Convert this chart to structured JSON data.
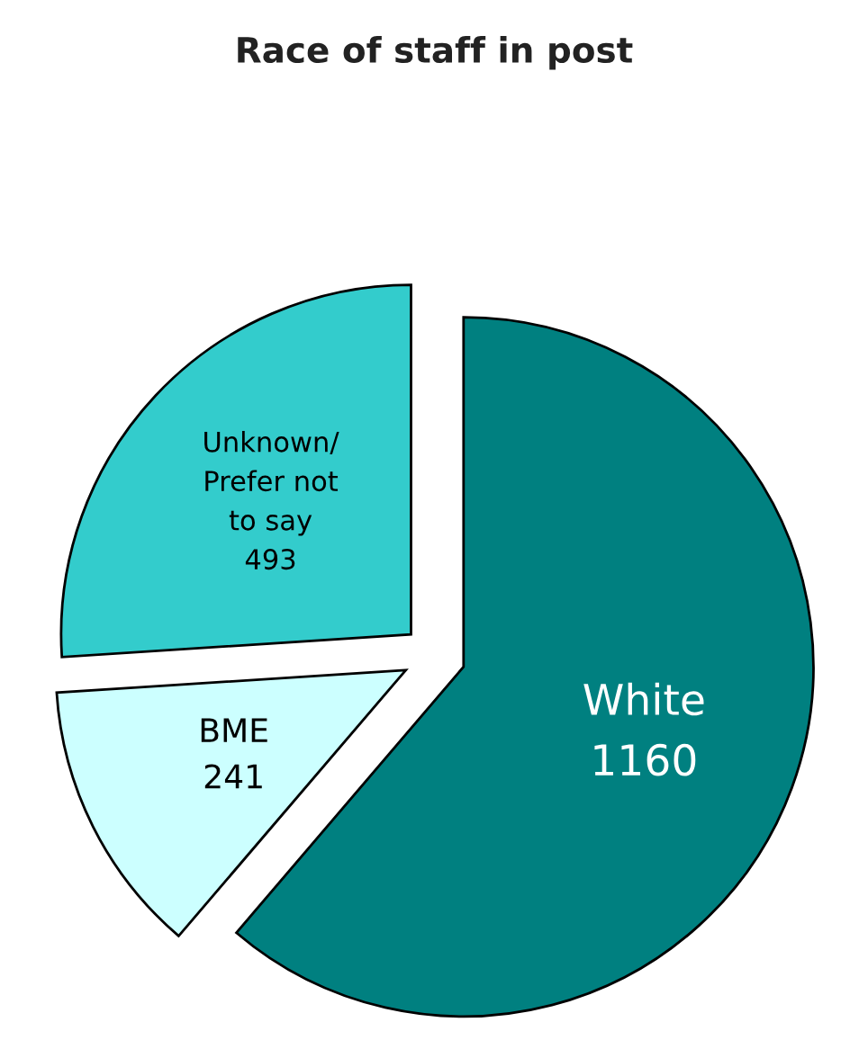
{
  "chart_data": {
    "type": "pie",
    "title": "Race of staff in post",
    "categories": [
      "White",
      "BME",
      "Unknown/\nPrefer not\nto say"
    ],
    "values": [
      1160,
      241,
      493
    ],
    "colors": [
      "#008080",
      "#ccffff",
      "#33cccc"
    ],
    "data_labels": true
  }
}
